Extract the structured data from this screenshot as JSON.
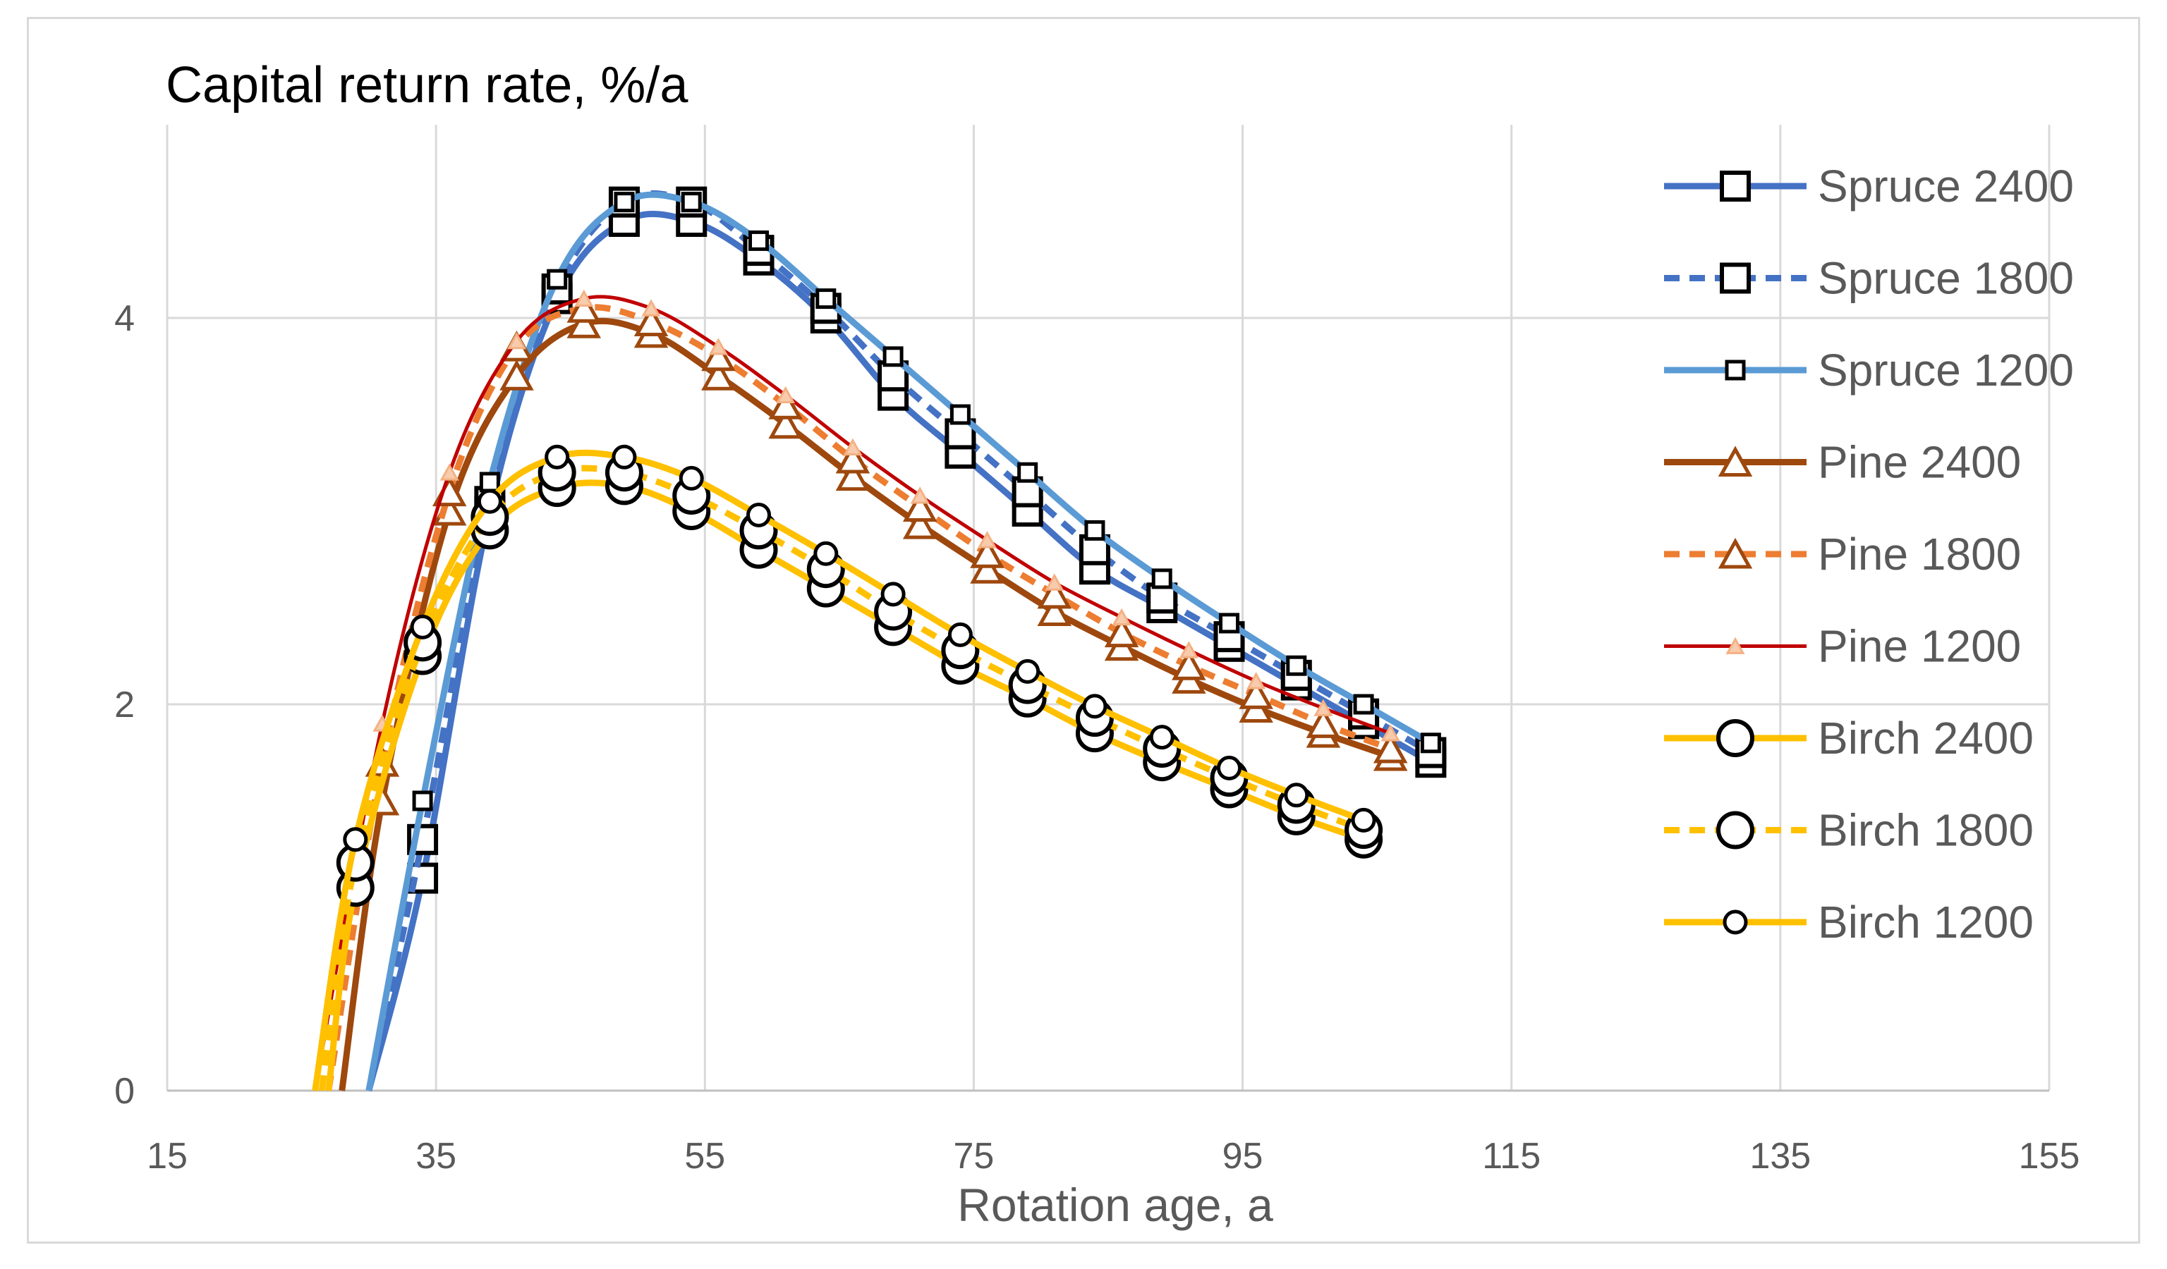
{
  "chart_data": {
    "type": "line",
    "title": "Capital return rate,  %/a",
    "xlabel": "Rotation age, a",
    "ylabel": "",
    "xlim": [
      15,
      155
    ],
    "ylim": [
      0,
      5
    ],
    "xticks": [
      15,
      35,
      55,
      75,
      95,
      115,
      135,
      155
    ],
    "yticks": [
      0,
      2,
      4
    ],
    "grid": true,
    "legend_position": "right",
    "series": [
      {
        "name": "Spruce 2400",
        "color": "#4472c4",
        "dash": "solid",
        "marker": "square",
        "marker_size": "large",
        "width": "thick",
        "x": [
          30,
          34,
          39,
          44,
          49,
          54,
          59,
          64,
          69,
          74,
          79,
          84,
          89,
          94,
          99,
          104,
          109
        ],
        "y": [
          0.0,
          1.1,
          3.0,
          4.1,
          4.5,
          4.5,
          4.3,
          4.0,
          3.6,
          3.3,
          3.0,
          2.7,
          2.5,
          2.3,
          2.1,
          1.9,
          1.7
        ]
      },
      {
        "name": "Spruce 1800",
        "color": "#4472c4",
        "dash": "dashed",
        "marker": "square",
        "marker_size": "large",
        "width": "thick",
        "x": [
          30,
          34,
          39,
          44,
          49,
          54,
          59,
          64,
          69,
          74,
          79,
          84,
          89,
          94,
          99,
          104,
          109
        ],
        "y": [
          0.0,
          1.3,
          3.05,
          4.15,
          4.6,
          4.6,
          4.35,
          4.05,
          3.7,
          3.4,
          3.1,
          2.8,
          2.55,
          2.35,
          2.15,
          1.95,
          1.75
        ]
      },
      {
        "name": "Spruce 1200",
        "color": "#5b9bd5",
        "dash": "solid",
        "marker": "square",
        "marker_size": "small",
        "width": "thick",
        "x": [
          30,
          34,
          39,
          44,
          49,
          54,
          59,
          64,
          69,
          74,
          79,
          84,
          89,
          94,
          99,
          104,
          109
        ],
        "y": [
          0.0,
          1.5,
          3.15,
          4.2,
          4.6,
          4.6,
          4.4,
          4.1,
          3.8,
          3.5,
          3.2,
          2.9,
          2.65,
          2.42,
          2.2,
          2.0,
          1.8
        ]
      },
      {
        "name": "Pine 2400",
        "color": "#9e480e",
        "dash": "solid",
        "marker": "triangle",
        "marker_size": "large",
        "width": "thick",
        "x": [
          28,
          31,
          36,
          41,
          46,
          51,
          56,
          61,
          66,
          71,
          76,
          81,
          86,
          91,
          96,
          101,
          106
        ],
        "y": [
          0.0,
          1.5,
          3.0,
          3.7,
          3.97,
          3.92,
          3.7,
          3.45,
          3.18,
          2.93,
          2.7,
          2.48,
          2.3,
          2.13,
          1.98,
          1.85,
          1.73
        ]
      },
      {
        "name": "Pine 1800",
        "color": "#ed7d31",
        "dash": "dashed",
        "marker": "triangle",
        "marker_size": "large",
        "width": "thick",
        "x": [
          27,
          31,
          36,
          41,
          46,
          51,
          56,
          61,
          66,
          71,
          76,
          81,
          86,
          91,
          96,
          101,
          106
        ],
        "y": [
          0.0,
          1.7,
          3.1,
          3.85,
          4.05,
          3.98,
          3.8,
          3.55,
          3.27,
          3.02,
          2.78,
          2.57,
          2.37,
          2.2,
          2.05,
          1.9,
          1.77
        ]
      },
      {
        "name": "Pine 1200",
        "color": "#c00000",
        "dash": "solid",
        "marker": "triangle",
        "marker_size": "small",
        "width": "thin",
        "x": [
          26,
          31,
          36,
          41,
          46,
          51,
          56,
          61,
          66,
          71,
          76,
          81,
          86,
          91,
          96,
          101,
          106
        ],
        "y": [
          0.0,
          1.9,
          3.2,
          3.88,
          4.1,
          4.05,
          3.85,
          3.6,
          3.33,
          3.08,
          2.85,
          2.63,
          2.45,
          2.28,
          2.12,
          1.98,
          1.85
        ]
      },
      {
        "name": "Birch 2400",
        "color": "#ffc000",
        "dash": "solid",
        "marker": "circle",
        "marker_size": "large",
        "width": "thick",
        "x": [
          27,
          29,
          34,
          39,
          44,
          49,
          54,
          59,
          64,
          69,
          74,
          79,
          84,
          89,
          94,
          99,
          104
        ],
        "y": [
          0.0,
          1.05,
          2.25,
          2.9,
          3.12,
          3.13,
          3.0,
          2.8,
          2.6,
          2.4,
          2.2,
          2.03,
          1.85,
          1.7,
          1.56,
          1.42,
          1.3
        ]
      },
      {
        "name": "Birch 1800",
        "color": "#ffc000",
        "dash": "dashed",
        "marker": "circle",
        "marker_size": "large",
        "width": "thick",
        "x": [
          26.5,
          29,
          34,
          39,
          44,
          49,
          54,
          59,
          64,
          69,
          74,
          79,
          84,
          89,
          94,
          99,
          104
        ],
        "y": [
          0.0,
          1.18,
          2.32,
          2.97,
          3.2,
          3.2,
          3.08,
          2.9,
          2.7,
          2.48,
          2.28,
          2.1,
          1.93,
          1.77,
          1.62,
          1.48,
          1.35
        ]
      },
      {
        "name": "Birch 1200",
        "color": "#ffc000",
        "dash": "solid",
        "marker": "circle",
        "marker_size": "small",
        "width": "thick",
        "x": [
          26,
          29,
          34,
          39,
          44,
          49,
          54,
          59,
          64,
          69,
          74,
          79,
          84,
          89,
          94,
          99,
          104
        ],
        "y": [
          0.0,
          1.3,
          2.4,
          3.05,
          3.28,
          3.28,
          3.17,
          2.98,
          2.78,
          2.57,
          2.36,
          2.17,
          1.99,
          1.83,
          1.67,
          1.53,
          1.4
        ]
      }
    ]
  }
}
